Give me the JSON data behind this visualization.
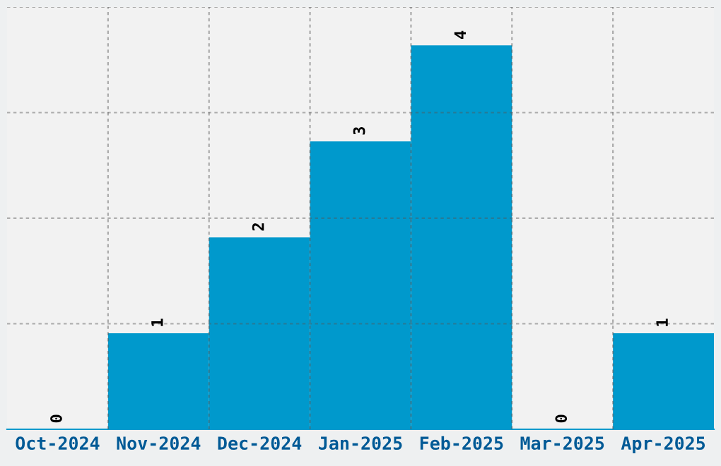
{
  "chart_data": {
    "type": "bar",
    "categories": [
      "Oct-2024",
      "Nov-2024",
      "Dec-2024",
      "Jan-2025",
      "Feb-2025",
      "Mar-2025",
      "Apr-2025"
    ],
    "values": [
      0,
      1,
      2,
      3,
      4,
      0,
      1
    ],
    "color": "#0099cc",
    "ylim": [
      0,
      4.4
    ],
    "yticks": [
      {
        "value": 1.1,
        "label": null
      },
      {
        "value": 2.2,
        "label": null
      },
      {
        "value": 3.3,
        "label": null
      },
      {
        "value": 4.4,
        "label": null
      }
    ],
    "grid": true,
    "data_labels": true,
    "tick_labels": "x"
  }
}
